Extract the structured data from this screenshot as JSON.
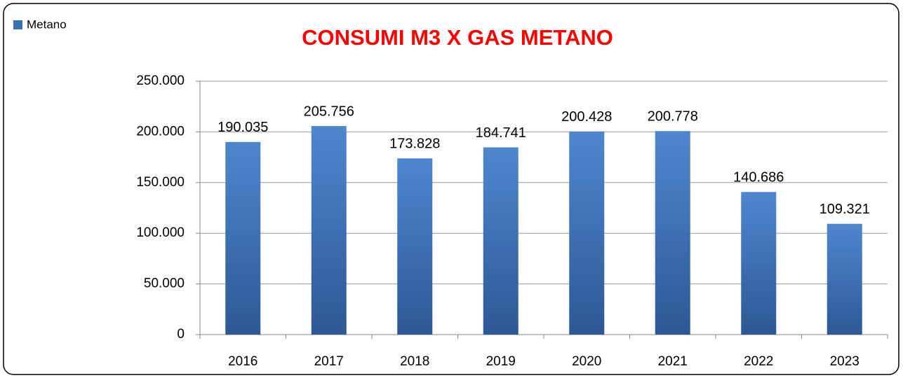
{
  "chart_data": {
    "type": "bar",
    "title": "CONSUMI M3 X GAS METANO",
    "categories": [
      "2016",
      "2017",
      "2018",
      "2019",
      "2020",
      "2021",
      "2022",
      "2023"
    ],
    "series": [
      {
        "name": "Metano",
        "color": "#3e6fb5",
        "values": [
          190035,
          205756,
          173828,
          184741,
          200428,
          200778,
          140686,
          109321
        ],
        "value_labels": [
          "190.035",
          "205.756",
          "173.828",
          "184.741",
          "200.428",
          "200.778",
          "140.686",
          "109.321"
        ]
      }
    ],
    "ylim": [
      0,
      250000
    ],
    "yticks": [
      0,
      {
        "value": 50000,
        "label": "50.000"
      },
      {
        "value": 100000,
        "label": "100.000"
      },
      {
        "value": 150000,
        "label": "150.000"
      },
      {
        "value": 200000,
        "label": "200.000"
      },
      {
        "value": 250000,
        "label": "250.000"
      }
    ],
    "grid": true,
    "legend": "top-left"
  }
}
